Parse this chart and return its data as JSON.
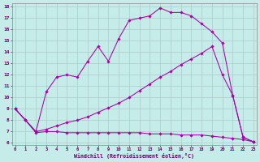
{
  "xlabel": "Windchill (Refroidissement éolien,°C)",
  "xlim": [
    0,
    23
  ],
  "ylim": [
    6,
    18
  ],
  "xticks": [
    0,
    1,
    2,
    3,
    4,
    5,
    6,
    7,
    8,
    9,
    10,
    11,
    12,
    13,
    14,
    15,
    16,
    17,
    18,
    19,
    20,
    21,
    22,
    23
  ],
  "yticks": [
    6,
    7,
    8,
    9,
    10,
    11,
    12,
    13,
    14,
    15,
    16,
    17,
    18
  ],
  "bg_color": "#c5ece8",
  "grid_color": "#aacccc",
  "line_color": "#aa00aa",
  "line1_x": [
    0,
    1,
    2,
    3,
    4,
    5,
    6,
    7,
    8,
    9,
    10,
    11,
    12,
    13,
    14,
    15,
    16,
    17,
    18,
    19,
    20,
    21,
    22,
    23
  ],
  "line1_y": [
    9.0,
    8.0,
    6.9,
    7.0,
    7.0,
    6.9,
    6.9,
    6.9,
    6.9,
    6.9,
    6.9,
    6.9,
    6.9,
    6.8,
    6.8,
    6.8,
    6.7,
    6.7,
    6.7,
    6.6,
    6.5,
    6.4,
    6.3,
    6.1
  ],
  "line2_x": [
    0,
    1,
    2,
    3,
    4,
    5,
    6,
    7,
    8,
    9,
    10,
    11,
    12,
    13,
    14,
    15,
    16,
    17,
    18,
    19,
    20,
    21,
    22,
    23
  ],
  "line2_y": [
    9.0,
    8.0,
    7.0,
    7.2,
    7.5,
    7.8,
    8.0,
    8.3,
    8.7,
    9.1,
    9.5,
    10.0,
    10.6,
    11.2,
    11.8,
    12.3,
    12.9,
    13.4,
    13.9,
    14.5,
    12.0,
    10.2,
    6.5,
    6.1
  ],
  "line3_x": [
    0,
    1,
    2,
    3,
    4,
    5,
    6,
    7,
    8,
    9,
    10,
    11,
    12,
    13,
    14,
    15,
    16,
    17,
    18,
    19,
    20,
    21,
    22,
    23
  ],
  "line3_y": [
    9.0,
    8.0,
    7.0,
    10.5,
    11.8,
    12.0,
    11.8,
    13.2,
    14.5,
    13.2,
    15.2,
    16.8,
    17.0,
    17.2,
    17.9,
    17.5,
    17.5,
    17.2,
    16.5,
    15.8,
    14.8,
    10.2,
    6.5,
    6.1
  ]
}
